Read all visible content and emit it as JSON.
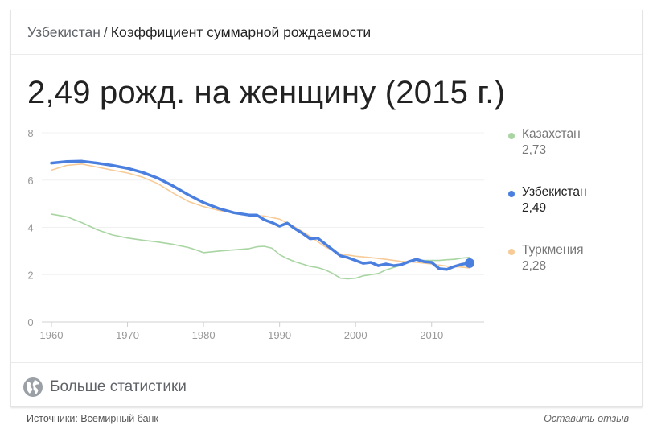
{
  "header": {
    "country": "Узбекистан",
    "separator": "/",
    "indicator": "Коэффициент суммарной рождаемости"
  },
  "headline": "2,49 рожд. на женщину (2015 г.)",
  "legend": [
    {
      "name": "Казахстан",
      "value": "2,73",
      "color": "#a8d5a2",
      "active": false
    },
    {
      "name": "Узбекистан",
      "value": "2,49",
      "color": "#4a7fe0",
      "active": true
    },
    {
      "name": "Туркмения",
      "value": "2,28",
      "color": "#f7cb97",
      "active": false
    }
  ],
  "footer": {
    "more_stats": "Больше статистики",
    "more_stats_icon": "globe-icon",
    "sources": "Источники: Всемирный банк",
    "feedback": "Оставить отзыв"
  },
  "chart_data": {
    "type": "line",
    "title": "",
    "xlabel": "",
    "ylabel": "",
    "xlim": [
      1960,
      2015
    ],
    "ylim": [
      0,
      8
    ],
    "x_ticks": [
      1960,
      1970,
      1980,
      1990,
      2000,
      2010
    ],
    "x_tick_labels": [
      "1960",
      "1970",
      "1980",
      "1990",
      "2000",
      "2010"
    ],
    "y_ticks": [
      0,
      2,
      4,
      6,
      8
    ],
    "y_tick_labels": [
      "0",
      "2",
      "4",
      "6",
      "8"
    ],
    "grid": true,
    "legend_position": "right",
    "series": [
      {
        "name": "Казахстан",
        "color": "#a8d5a2",
        "x": [
          1960,
          1962,
          1964,
          1966,
          1968,
          1970,
          1972,
          1974,
          1976,
          1978,
          1979,
          1980,
          1982,
          1984,
          1986,
          1987,
          1988,
          1989,
          1990,
          1991,
          1992,
          1993,
          1994,
          1995,
          1996,
          1997,
          1998,
          1999,
          2000,
          2001,
          2002,
          2003,
          2004,
          2005,
          2006,
          2007,
          2008,
          2009,
          2010,
          2011,
          2012,
          2013,
          2014,
          2015
        ],
        "y": [
          4.56,
          4.45,
          4.2,
          3.9,
          3.68,
          3.55,
          3.46,
          3.38,
          3.28,
          3.15,
          3.05,
          2.93,
          3.0,
          3.05,
          3.1,
          3.18,
          3.2,
          3.12,
          2.85,
          2.68,
          2.55,
          2.45,
          2.35,
          2.3,
          2.2,
          2.05,
          1.85,
          1.82,
          1.85,
          1.95,
          2.0,
          2.05,
          2.2,
          2.3,
          2.4,
          2.55,
          2.62,
          2.6,
          2.6,
          2.6,
          2.63,
          2.65,
          2.7,
          2.73
        ]
      },
      {
        "name": "Узбекистан",
        "color": "#4a7fe0",
        "x": [
          1960,
          1962,
          1964,
          1966,
          1968,
          1970,
          1972,
          1974,
          1976,
          1978,
          1980,
          1982,
          1984,
          1986,
          1987,
          1988,
          1989,
          1990,
          1991,
          1992,
          1993,
          1994,
          1995,
          1996,
          1997,
          1998,
          1999,
          2000,
          2001,
          2002,
          2003,
          2004,
          2005,
          2006,
          2007,
          2008,
          2009,
          2010,
          2011,
          2012,
          2013,
          2014,
          2015
        ],
        "y": [
          6.72,
          6.78,
          6.8,
          6.72,
          6.62,
          6.5,
          6.32,
          6.08,
          5.75,
          5.38,
          5.05,
          4.8,
          4.62,
          4.52,
          4.52,
          4.32,
          4.2,
          4.05,
          4.18,
          3.95,
          3.75,
          3.52,
          3.55,
          3.3,
          3.05,
          2.8,
          2.72,
          2.6,
          2.48,
          2.52,
          2.38,
          2.45,
          2.38,
          2.42,
          2.55,
          2.65,
          2.55,
          2.52,
          2.25,
          2.22,
          2.35,
          2.44,
          2.49
        ]
      },
      {
        "name": "Туркмения",
        "color": "#f7cb97",
        "x": [
          1960,
          1962,
          1964,
          1966,
          1968,
          1970,
          1972,
          1974,
          1976,
          1978,
          1980,
          1982,
          1984,
          1986,
          1988,
          1990,
          1992,
          1994,
          1996,
          1998,
          2000,
          2002,
          2004,
          2006,
          2008,
          2010,
          2012,
          2014,
          2015
        ],
        "y": [
          6.42,
          6.62,
          6.68,
          6.55,
          6.42,
          6.3,
          6.12,
          5.85,
          5.45,
          5.1,
          4.88,
          4.72,
          4.6,
          4.52,
          4.48,
          4.35,
          4.02,
          3.62,
          3.18,
          2.88,
          2.78,
          2.72,
          2.65,
          2.56,
          2.52,
          2.45,
          2.36,
          2.32,
          2.28
        ]
      }
    ]
  }
}
